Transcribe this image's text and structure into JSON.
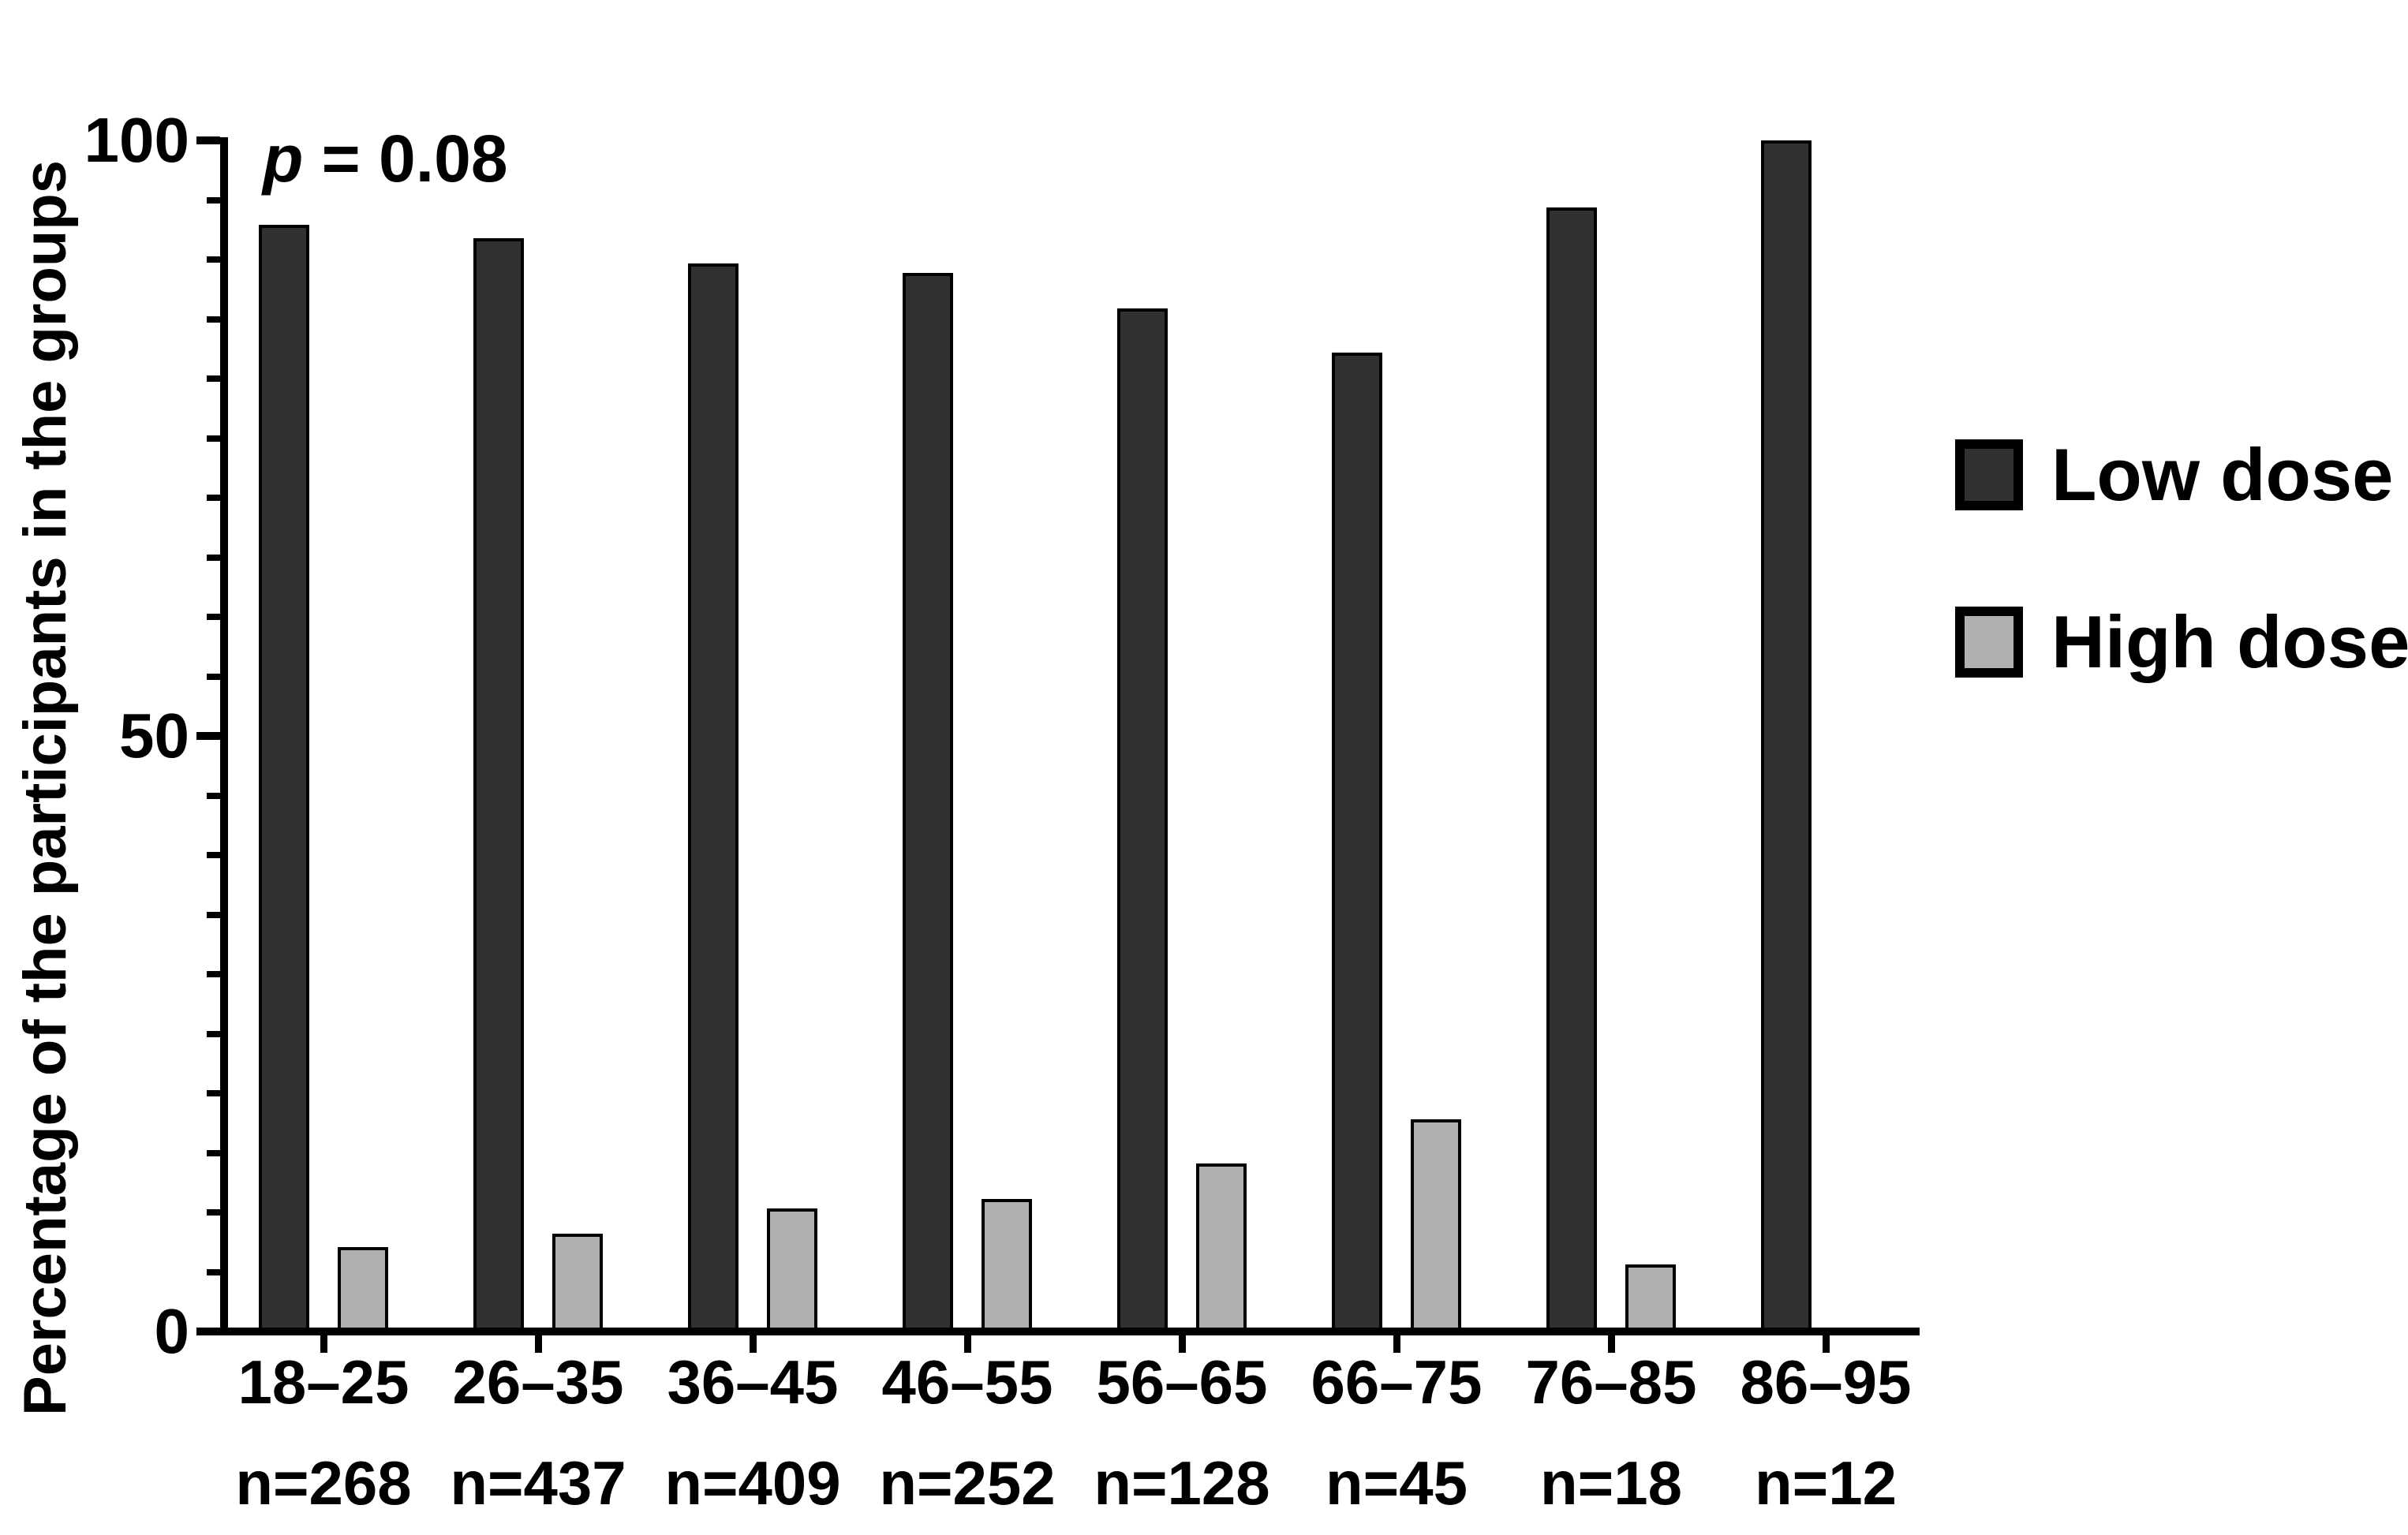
{
  "figure": {
    "background": "#ffffff",
    "annotation_var": "p",
    "annotation_rest": " = 0.08"
  },
  "chart_data": {
    "type": "bar",
    "title": "",
    "xlabel": "",
    "ylabel": "Percentage of the participants in the groups",
    "annotation": "p = 0.08",
    "categories": [
      "18–25",
      "26–35",
      "36–45",
      "46–55",
      "56–65",
      "66–75",
      "76–85",
      "86–95"
    ],
    "n_labels": [
      "n=268",
      "n=437",
      "n=409",
      "n=252",
      "n=128",
      "n=45",
      "n=18",
      "n=12"
    ],
    "series": [
      {
        "name": "Low dose",
        "color": "#313131",
        "values": [
          92.9,
          91.8,
          89.7,
          88.9,
          85.9,
          82.2,
          94.4,
          100
        ]
      },
      {
        "name": "High dose",
        "color": "#b0b0b0",
        "values": [
          7.1,
          8.2,
          10.3,
          11.1,
          14.1,
          17.8,
          5.6,
          0
        ]
      }
    ],
    "ylim": [
      0,
      100
    ],
    "yticks_major": [
      0,
      50,
      100
    ],
    "ytick_minor_step": 5,
    "grid": false,
    "legend_position": "right",
    "bar_border_color": "#000000",
    "axis_color": "#000000"
  }
}
